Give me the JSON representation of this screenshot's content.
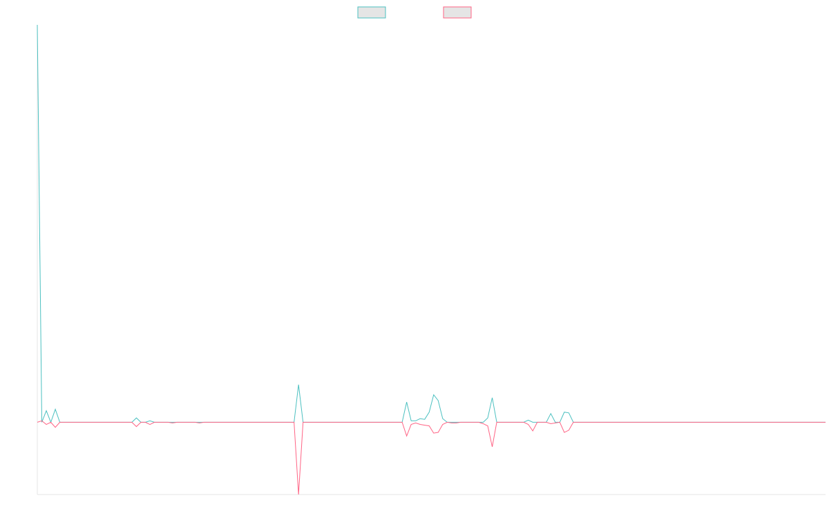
{
  "chart_data": {
    "type": "line",
    "title": "",
    "xlabel": "",
    "ylabel": "",
    "legend_position": "top",
    "grid": false,
    "x_range": [
      0,
      175
    ],
    "ylim": [
      -100,
      550
    ],
    "series": [
      {
        "legend_label": "",
        "color": "#4bc0c0",
        "fill": "#e5e5e5",
        "values": [
          550,
          0,
          16,
          0,
          18,
          0,
          0,
          0,
          0,
          0,
          0,
          0,
          0,
          0,
          0,
          0,
          0,
          0,
          0,
          0,
          0,
          0,
          6,
          0,
          0,
          2,
          0,
          0,
          0,
          0,
          0,
          0,
          0,
          0,
          0,
          0,
          0,
          0,
          0,
          0,
          0,
          0,
          0,
          0,
          0,
          0,
          0,
          0,
          0,
          0,
          0,
          0,
          0,
          0,
          0,
          0,
          0,
          0,
          52,
          0,
          0,
          0,
          0,
          0,
          0,
          0,
          0,
          0,
          0,
          0,
          0,
          0,
          0,
          0,
          0,
          0,
          0,
          0,
          0,
          0,
          0,
          0,
          28,
          2,
          2,
          5,
          4,
          14,
          38,
          30,
          5,
          0,
          0,
          0,
          0,
          0,
          0,
          0,
          0,
          0,
          6,
          34,
          0,
          0,
          0,
          0,
          0,
          0,
          0,
          3,
          0,
          0,
          0,
          0,
          12,
          0,
          0,
          14,
          13,
          0,
          0,
          0,
          0,
          0,
          0,
          0,
          0,
          0,
          0,
          0,
          0,
          0,
          0,
          0,
          0,
          0,
          0,
          0,
          0,
          0,
          0,
          0,
          0,
          0,
          0,
          0,
          0,
          0,
          0,
          0,
          0,
          0,
          0,
          0,
          0,
          0,
          0,
          0,
          0,
          0,
          0,
          0,
          0,
          0,
          0,
          0,
          0,
          0,
          0,
          0,
          0,
          0,
          0,
          0,
          0,
          0
        ]
      },
      {
        "legend_label": "",
        "color": "#ff6384",
        "fill": "#e5e5e5",
        "values": [
          0,
          2,
          -3,
          0,
          -7,
          0,
          0,
          0,
          0,
          0,
          0,
          0,
          0,
          0,
          0,
          0,
          0,
          0,
          0,
          0,
          0,
          0,
          -6,
          0,
          0,
          -3,
          0,
          0,
          0,
          0,
          -1,
          0,
          0,
          0,
          0,
          0,
          -1,
          0,
          0,
          0,
          0,
          0,
          0,
          0,
          0,
          0,
          0,
          0,
          0,
          0,
          0,
          0,
          0,
          0,
          0,
          0,
          0,
          0,
          -100,
          0,
          0,
          0,
          0,
          0,
          0,
          0,
          0,
          0,
          0,
          0,
          0,
          0,
          0,
          0,
          0,
          0,
          0,
          0,
          0,
          0,
          0,
          0,
          -19,
          -3,
          -1,
          -3,
          -4,
          -5,
          -15,
          -14,
          -3,
          0,
          -1,
          -1,
          0,
          0,
          0,
          0,
          0,
          -2,
          -5,
          -34,
          0,
          0,
          0,
          0,
          0,
          0,
          0,
          -3,
          -12,
          0,
          0,
          0,
          -2,
          -1,
          0,
          -14,
          -11,
          0,
          0,
          0,
          0,
          0,
          0,
          0,
          0,
          0,
          0,
          0,
          0,
          0,
          0,
          0,
          0,
          0,
          0,
          0,
          0,
          0,
          0,
          0,
          0,
          0,
          0,
          0,
          0,
          0,
          0,
          0,
          0,
          0,
          0,
          0,
          0,
          0,
          0,
          0,
          0,
          0,
          0,
          0,
          0,
          0,
          0,
          0,
          0,
          0,
          0,
          0,
          0,
          0,
          0,
          0,
          0,
          0
        ]
      }
    ]
  }
}
